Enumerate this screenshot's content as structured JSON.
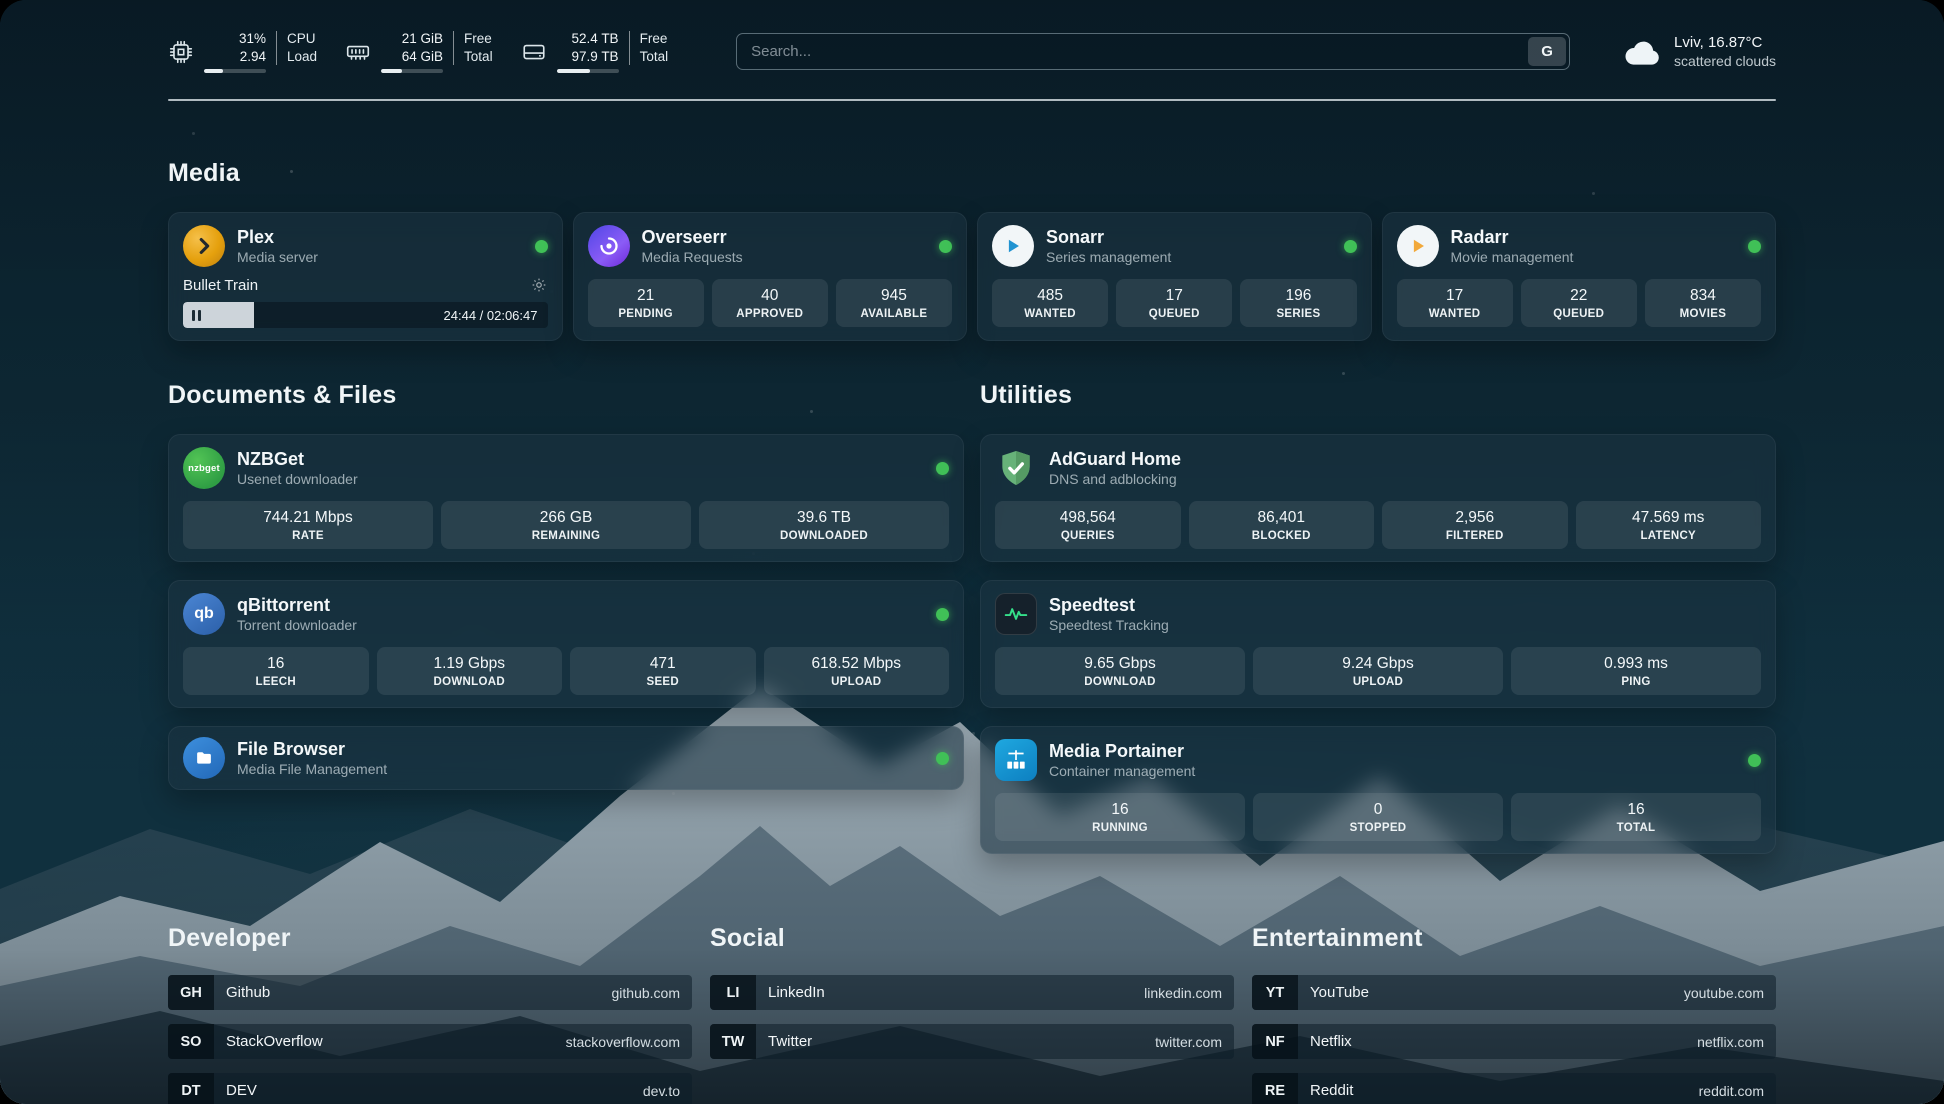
{
  "header": {
    "cpu": {
      "value_top": "31%",
      "label_top": "CPU",
      "value_bottom": "2.94",
      "label_bottom": "Load",
      "progress_pct": 31
    },
    "memory": {
      "value_top": "21 GiB",
      "label_top": "Free",
      "value_bottom": "64 GiB",
      "label_bottom": "Total",
      "progress_pct": 33
    },
    "disk": {
      "value_top": "52.4 TB",
      "label_top": "Free",
      "value_bottom": "97.9 TB",
      "label_bottom": "Total",
      "progress_pct": 54
    },
    "search": {
      "placeholder": "Search...",
      "engine_button": "G"
    },
    "weather": {
      "location": "Lviv, 16.87°C",
      "condition": "scattered clouds"
    }
  },
  "sections": {
    "media": {
      "title": "Media",
      "plex": {
        "name": "Plex",
        "subtitle": "Media server",
        "status": "online",
        "now_playing": "Bullet Train",
        "time": "24:44 / 02:06:47",
        "progress_pct": 19.5
      },
      "overseerr": {
        "name": "Overseerr",
        "subtitle": "Media Requests",
        "status": "online",
        "stats": [
          {
            "value": "21",
            "label": "PENDING"
          },
          {
            "value": "40",
            "label": "APPROVED"
          },
          {
            "value": "945",
            "label": "AVAILABLE"
          }
        ]
      },
      "sonarr": {
        "name": "Sonarr",
        "subtitle": "Series management",
        "status": "online",
        "stats": [
          {
            "value": "485",
            "label": "WANTED"
          },
          {
            "value": "17",
            "label": "QUEUED"
          },
          {
            "value": "196",
            "label": "SERIES"
          }
        ]
      },
      "radarr": {
        "name": "Radarr",
        "subtitle": "Movie management",
        "status": "online",
        "stats": [
          {
            "value": "17",
            "label": "WANTED"
          },
          {
            "value": "22",
            "label": "QUEUED"
          },
          {
            "value": "834",
            "label": "MOVIES"
          }
        ]
      }
    },
    "documents": {
      "title": "Documents & Files",
      "nzbget": {
        "name": "NZBGet",
        "subtitle": "Usenet downloader",
        "status": "online",
        "icon_text": "nzbget",
        "stats": [
          {
            "value": "744.21 Mbps",
            "label": "RATE"
          },
          {
            "value": "266 GB",
            "label": "REMAINING"
          },
          {
            "value": "39.6 TB",
            "label": "DOWNLOADED"
          }
        ]
      },
      "qbittorrent": {
        "name": "qBittorrent",
        "subtitle": "Torrent downloader",
        "status": "online",
        "icon_text": "qb",
        "stats": [
          {
            "value": "16",
            "label": "LEECH"
          },
          {
            "value": "1.19 Gbps",
            "label": "DOWNLOAD"
          },
          {
            "value": "471",
            "label": "SEED"
          },
          {
            "value": "618.52 Mbps",
            "label": "UPLOAD"
          }
        ]
      },
      "filebrowser": {
        "name": "File Browser",
        "subtitle": "Media File Management",
        "status": "online"
      }
    },
    "utilities": {
      "title": "Utilities",
      "adguard": {
        "name": "AdGuard Home",
        "subtitle": "DNS and adblocking",
        "stats": [
          {
            "value": "498,564",
            "label": "QUERIES"
          },
          {
            "value": "86,401",
            "label": "BLOCKED"
          },
          {
            "value": "2,956",
            "label": "FILTERED"
          },
          {
            "value": "47.569 ms",
            "label": "LATENCY"
          }
        ]
      },
      "speedtest": {
        "name": "Speedtest",
        "subtitle": "Speedtest Tracking",
        "stats": [
          {
            "value": "9.65 Gbps",
            "label": "DOWNLOAD"
          },
          {
            "value": "9.24 Gbps",
            "label": "UPLOAD"
          },
          {
            "value": "0.993 ms",
            "label": "PING"
          }
        ]
      },
      "portainer": {
        "name": "Media Portainer",
        "subtitle": "Container management",
        "status": "online",
        "stats": [
          {
            "value": "16",
            "label": "RUNNING"
          },
          {
            "value": "0",
            "label": "STOPPED"
          },
          {
            "value": "16",
            "label": "TOTAL"
          }
        ]
      }
    }
  },
  "links": {
    "developer": {
      "title": "Developer",
      "items": [
        {
          "abbr": "GH",
          "name": "Github",
          "url": "github.com"
        },
        {
          "abbr": "SO",
          "name": "StackOverflow",
          "url": "stackoverflow.com"
        },
        {
          "abbr": "DT",
          "name": "DEV",
          "url": "dev.to"
        }
      ]
    },
    "social": {
      "title": "Social",
      "items": [
        {
          "abbr": "LI",
          "name": "LinkedIn",
          "url": "linkedin.com"
        },
        {
          "abbr": "TW",
          "name": "Twitter",
          "url": "twitter.com"
        }
      ]
    },
    "entertainment": {
      "title": "Entertainment",
      "items": [
        {
          "abbr": "YT",
          "name": "YouTube",
          "url": "youtube.com"
        },
        {
          "abbr": "NF",
          "name": "Netflix",
          "url": "netflix.com"
        },
        {
          "abbr": "RE",
          "name": "Reddit",
          "url": "reddit.com"
        }
      ]
    }
  },
  "colors": {
    "status_online": "#40c057",
    "accent_green": "#35e08a",
    "plex_amber": "#e5a00d"
  }
}
